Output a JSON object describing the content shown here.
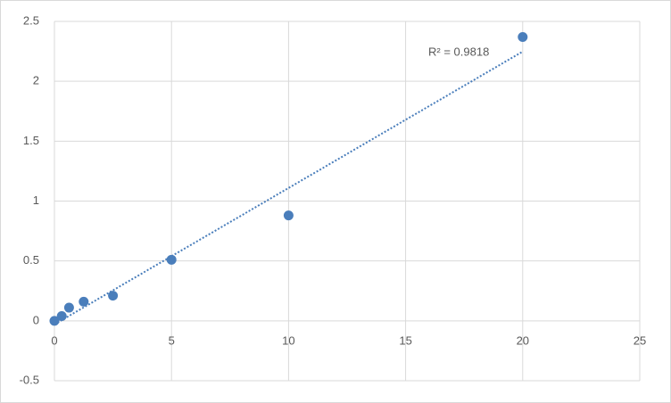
{
  "chart_data": {
    "type": "scatter",
    "x": [
      0,
      0.3125,
      0.625,
      1.25,
      2.5,
      5,
      10,
      20
    ],
    "values": [
      0,
      0.04,
      0.11,
      0.16,
      0.21,
      0.51,
      0.88,
      2.37
    ],
    "color": "#4a7ebb",
    "trendline": "linear",
    "annotation": "R² = 0.9818",
    "xlim": [
      0,
      25
    ],
    "xticks": [
      0,
      5,
      10,
      15,
      20,
      25
    ],
    "ylim": [
      -0.5,
      2.5
    ],
    "yticks": [
      -0.5,
      0,
      0.5,
      1,
      1.5,
      2,
      2.5
    ],
    "grid": true
  }
}
